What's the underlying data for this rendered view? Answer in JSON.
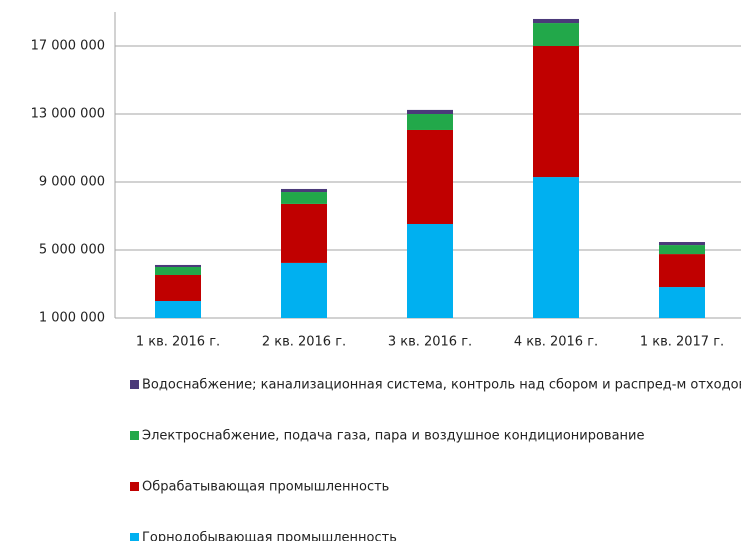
{
  "chart_data": {
    "type": "stacked_bar",
    "categories": [
      "1 кв. 2016 г.",
      "2 кв. 2016 г.",
      "3 кв. 2016 г.",
      "4 кв. 2016 г.",
      "1 кв. 2017 г."
    ],
    "series": [
      {
        "name": "Горнодобывающая промышленность",
        "color": "#00b0f0",
        "values": [
          2000000,
          4240000,
          6530000,
          9290000,
          2820000
        ]
      },
      {
        "name": "Обрабатывающая промышленность",
        "color": "#c00000",
        "values": [
          1530000,
          3470000,
          5530000,
          7710000,
          1940000
        ]
      },
      {
        "name": "Электроснабжение, подача газа, пара и воздушное кондиционирование",
        "color": "#22a84a",
        "values": [
          470000,
          700000,
          940000,
          1350000,
          530000
        ]
      },
      {
        "name": "Водоснабжение; канализационная система, контроль над сбором и распред-м отходов",
        "color": "#4b3a7a",
        "values": [
          120000,
          180000,
          240000,
          240000,
          180000
        ]
      }
    ],
    "ylim": [
      1000000,
      19000000
    ],
    "yticks": [
      {
        "value": 1000000,
        "label": "1 000 000"
      },
      {
        "value": 5000000,
        "label": "5 000 000"
      },
      {
        "value": 9000000,
        "label": "9 000 000"
      },
      {
        "value": 13000000,
        "label": "13 000 000"
      },
      {
        "value": 17000000,
        "label": "17 000 000"
      }
    ],
    "grid": true
  }
}
